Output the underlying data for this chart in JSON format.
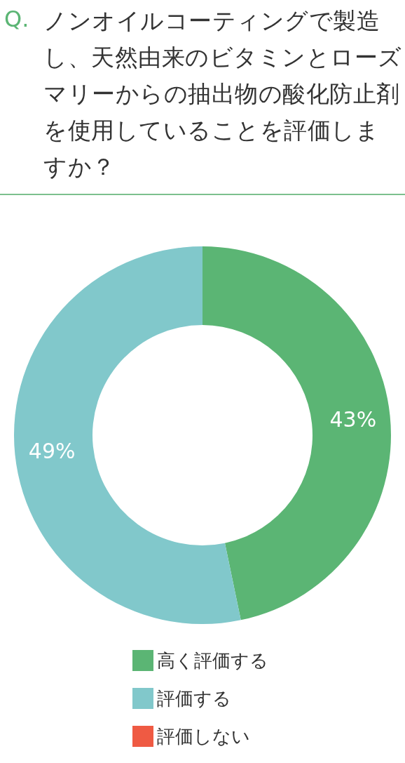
{
  "chart_data": {
    "type": "donut",
    "title": "ノンオイルコーティングで製造し、天然由来のビタミンとローズマリーからの抽出物の酸化防止剤を使用していることを評価しますか？",
    "annotations": [
      "Q."
    ],
    "categories": [
      "高く評価する",
      "評価する",
      "評価しない"
    ],
    "values": [
      43,
      49,
      null
    ],
    "value_labels": [
      "43%",
      "49%",
      null
    ],
    "colors": [
      "#5bb574",
      "#81c8cb",
      "#ef5a43"
    ],
    "legend": "bottom"
  }
}
